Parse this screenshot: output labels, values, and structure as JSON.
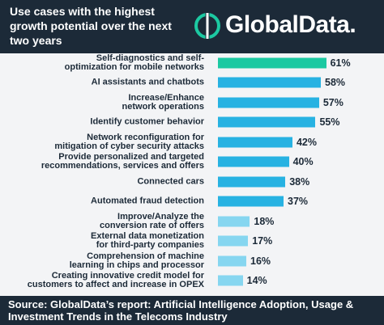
{
  "chart_data": {
    "type": "bar",
    "orientation": "horizontal",
    "title": "Use cases with the highest growth potential over the next two years",
    "logo": "GlobalData.",
    "source": "Source: GlobalData’s report: Artificial Intelligence Adoption, Usage & Investment Trends in the Telecoms Industry",
    "categories": [
      "Self-diagnostics and self-\noptimization for mobile networks",
      "AI assistants and chatbots",
      "Increase/Enhance\nnetwork operations",
      "Identify customer behavior",
      "Network reconfiguration for\nmitigation of cyber security attacks",
      "Provide personalized and targeted\nrecommendations, services and offers",
      "Connected cars",
      "Automated fraud detection",
      "Improve/Analyze the\nconversion rate of offers",
      "External data monetization\nfor third-party companies",
      "Comprehension of machine\nlearning in chips and processor",
      "Creating innovative credit model for\ncustomers to affect and increase in OPEX"
    ],
    "values": [
      61,
      58,
      57,
      55,
      42,
      40,
      38,
      37,
      18,
      17,
      16,
      14
    ],
    "value_labels": [
      "61%",
      "58%",
      "57%",
      "55%",
      "42%",
      "40%",
      "38%",
      "37%",
      "18%",
      "17%",
      "16%",
      "14%"
    ],
    "colors": [
      "#1cc9a2",
      "#27b2e2",
      "#27b2e2",
      "#27b2e2",
      "#27b2e2",
      "#27b2e2",
      "#27b2e2",
      "#27b2e2",
      "#86d6f0",
      "#86d6f0",
      "#86d6f0",
      "#86d6f0"
    ]
  }
}
